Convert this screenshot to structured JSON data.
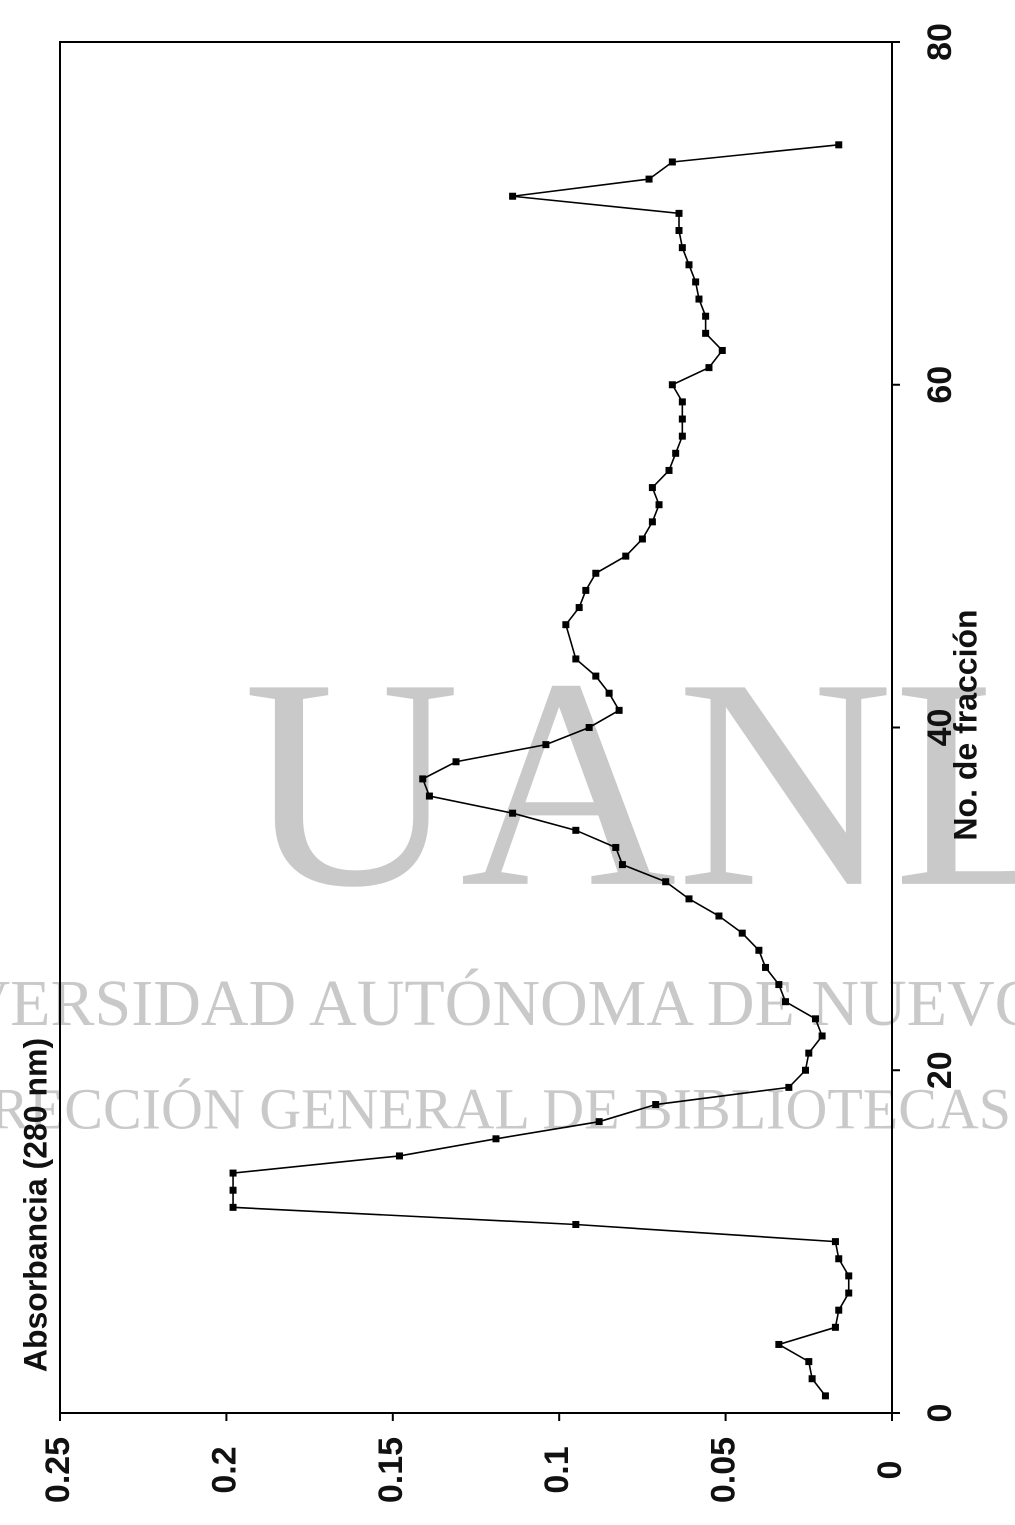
{
  "chart_data": {
    "type": "line",
    "x_label": "No. de fracción",
    "y_label": "Absorbancia (280 nm)",
    "watermark": [
      "UANL",
      "UNIVERSIDAD AUTÓNOMA DE NUEVO LEÓN",
      "DIRECCIÓN GENERAL DE BIBLIOTECAS"
    ],
    "x": [
      1,
      2,
      3,
      4,
      5,
      6,
      7,
      8,
      9,
      10,
      11,
      12,
      13,
      14,
      15,
      16,
      17,
      18,
      19,
      20,
      21,
      22,
      23,
      24,
      25,
      26,
      27,
      28,
      29,
      30,
      31,
      32,
      33,
      34,
      35,
      36,
      37,
      38,
      39,
      40,
      41,
      42,
      43,
      44,
      46,
      47,
      48,
      49,
      50,
      51,
      52,
      53,
      54,
      55,
      56,
      57,
      58,
      59,
      60,
      61,
      62,
      63,
      64,
      65,
      66,
      67,
      68,
      69,
      70,
      71,
      72,
      73,
      74
    ],
    "series": [
      {
        "name": "Absorbancia",
        "color": "#000000",
        "values": [
          0.02,
          0.024,
          0.025,
          0.034,
          0.017,
          0.016,
          0.013,
          0.013,
          0.016,
          0.017,
          0.095,
          0.198,
          0.198,
          0.198,
          0.148,
          0.119,
          0.088,
          0.071,
          0.031,
          0.026,
          0.025,
          0.021,
          0.023,
          0.032,
          0.034,
          0.038,
          0.04,
          0.045,
          0.052,
          0.061,
          0.068,
          0.081,
          0.083,
          0.095,
          0.114,
          0.139,
          0.141,
          0.131,
          0.104,
          0.091,
          0.082,
          0.085,
          0.089,
          0.095,
          0.098,
          0.094,
          0.092,
          0.089,
          0.08,
          0.075,
          0.072,
          0.07,
          0.072,
          0.067,
          0.065,
          0.063,
          0.063,
          0.063,
          0.066,
          0.055,
          0.051,
          0.056,
          0.056,
          0.058,
          0.059,
          0.061,
          0.063,
          0.064,
          0.064,
          0.114,
          0.073,
          0.066,
          0.016
        ]
      }
    ],
    "xlim": [
      0,
      80
    ],
    "xticks": [
      0,
      20,
      40,
      60,
      80
    ],
    "ylim": [
      0,
      0.25
    ],
    "yticks": [
      0.25,
      0.2,
      0.15,
      0.1,
      0.05,
      0
    ]
  }
}
